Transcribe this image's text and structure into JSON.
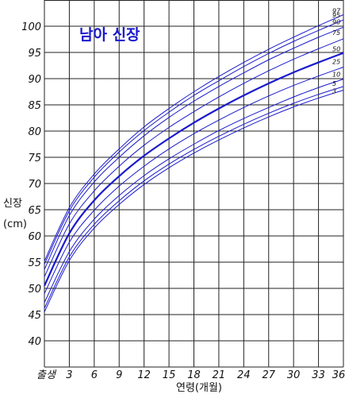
{
  "chart_data": {
    "type": "line",
    "title": "남아 신장",
    "ylabel_line1": "신장",
    "ylabel_line2": "(cm)",
    "xlabel": "연령(개월)",
    "xlim": [
      0,
      36
    ],
    "ylim": [
      35,
      105
    ],
    "x_ticks": [
      0,
      3,
      6,
      9,
      12,
      15,
      18,
      21,
      24,
      27,
      30,
      33,
      36
    ],
    "x_tick_labels": [
      "출생",
      "3",
      "6",
      "9",
      "12",
      "15",
      "18",
      "21",
      "24",
      "27",
      "30",
      "33",
      "36"
    ],
    "y_ticks": [
      40,
      45,
      50,
      55,
      60,
      65,
      70,
      75,
      80,
      85,
      90,
      95,
      100
    ],
    "y_tick_labels": [
      "40",
      "45",
      "50",
      "55",
      "60",
      "65",
      "70",
      "75",
      "80",
      "85",
      "90",
      "95",
      "100"
    ],
    "grid": true,
    "line_color": "#1a1acc",
    "x": [
      0,
      3,
      6,
      9,
      12,
      15,
      18,
      21,
      24,
      27,
      30,
      33,
      36
    ],
    "series": [
      {
        "name": "3",
        "values": [
          45.5,
          55.3,
          61.5,
          66.0,
          69.8,
          73.0,
          75.8,
          78.3,
          80.6,
          82.7,
          84.6,
          86.3,
          87.8
        ]
      },
      {
        "name": "5",
        "values": [
          46.2,
          56.0,
          62.2,
          66.7,
          70.5,
          73.7,
          76.5,
          79.0,
          81.3,
          83.4,
          85.3,
          87.0,
          88.5
        ]
      },
      {
        "name": "10",
        "values": [
          47.3,
          57.0,
          63.2,
          67.7,
          71.5,
          74.7,
          77.5,
          80.1,
          82.4,
          84.5,
          86.5,
          88.3,
          89.9
        ]
      },
      {
        "name": "25",
        "values": [
          49.0,
          58.8,
          64.9,
          69.5,
          73.3,
          76.6,
          79.5,
          82.1,
          84.5,
          86.7,
          88.7,
          90.5,
          92.2
        ]
      },
      {
        "name": "50",
        "values": [
          50.5,
          60.5,
          66.8,
          71.4,
          75.3,
          78.6,
          81.6,
          84.3,
          86.8,
          89.1,
          91.2,
          93.1,
          94.9
        ]
      },
      {
        "name": "75",
        "values": [
          52.2,
          62.3,
          68.6,
          73.3,
          77.3,
          80.7,
          83.7,
          86.5,
          89.1,
          91.5,
          93.7,
          95.7,
          97.6
        ]
      },
      {
        "name": "90",
        "values": [
          53.6,
          63.9,
          70.3,
          75.0,
          79.1,
          82.6,
          85.7,
          88.5,
          91.1,
          93.6,
          95.8,
          97.9,
          99.8
        ]
      },
      {
        "name": "95",
        "values": [
          54.6,
          64.8,
          71.2,
          76.0,
          80.1,
          83.6,
          86.8,
          89.6,
          92.3,
          94.8,
          97.1,
          99.2,
          101.2
        ]
      },
      {
        "name": "97",
        "values": [
          55.2,
          65.4,
          71.8,
          76.6,
          80.8,
          84.3,
          87.5,
          90.4,
          93.1,
          95.6,
          97.9,
          100.1,
          102.2
        ]
      }
    ],
    "highlight_series": "50"
  }
}
